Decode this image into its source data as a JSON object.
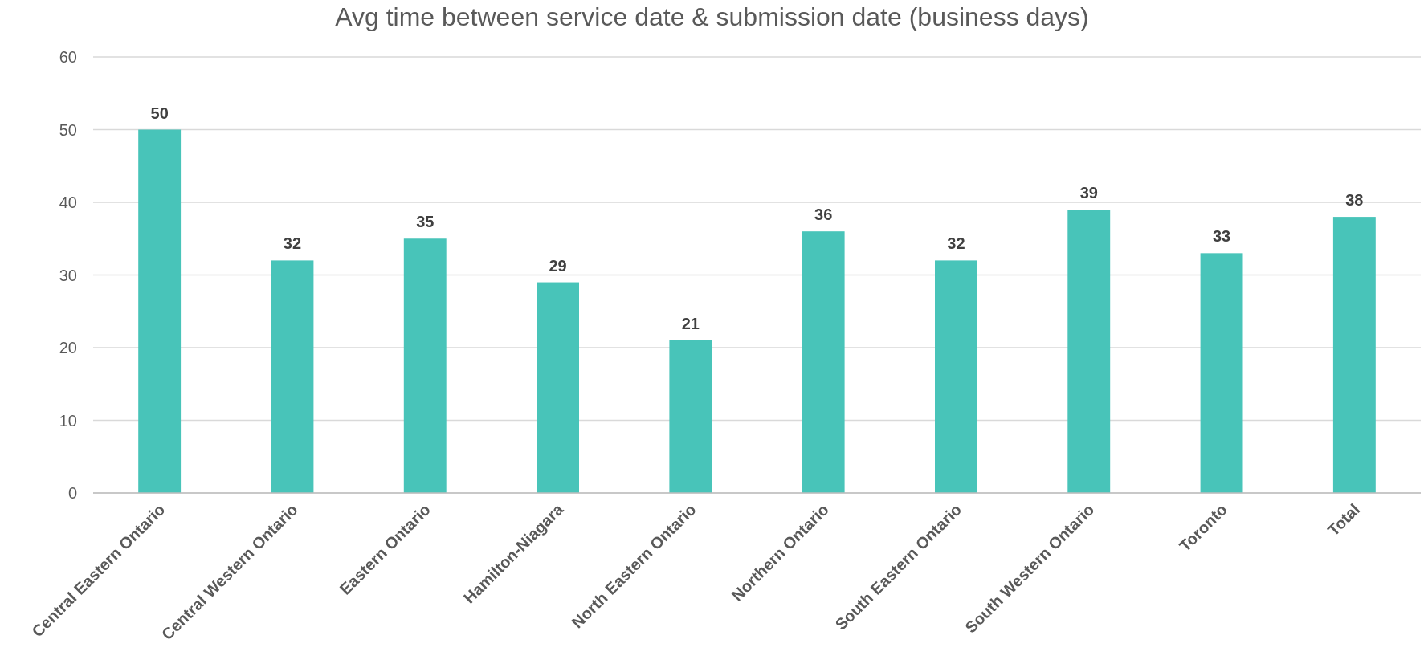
{
  "chart_data": {
    "type": "bar",
    "title": "Avg time between service date & submission date (business days)",
    "categories": [
      "Central Eastern Ontario",
      "Central Western Ontario",
      "Eastern Ontario",
      "Hamilton-Niagara",
      "North Eastern Ontario",
      "Northern Ontario",
      "South Eastern Ontario",
      "South Western Ontario",
      "Toronto",
      "Total"
    ],
    "values": [
      50,
      32,
      35,
      29,
      21,
      36,
      32,
      39,
      33,
      38
    ],
    "color": "#48c4b9",
    "ylim": [
      0,
      60
    ],
    "yticks": [
      0,
      10,
      20,
      30,
      40,
      50,
      60
    ],
    "grid": "y",
    "data_labels": true
  }
}
